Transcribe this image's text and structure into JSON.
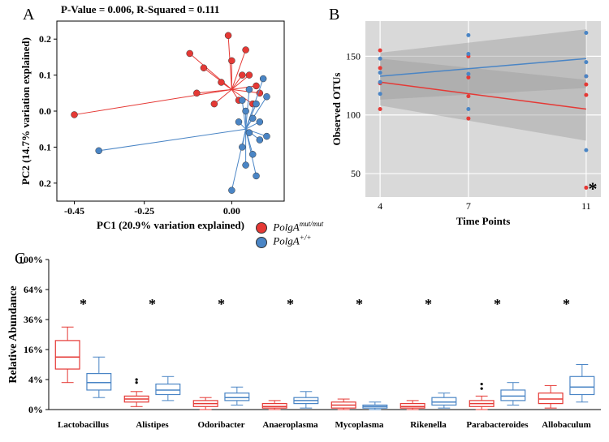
{
  "panelA": {
    "label": "A",
    "title": "P-Value = 0.006, R-Squared = 0.111",
    "xlabel": "PC1 (20.9% variation explained)",
    "ylabel": "PC2 (14.7% variation explained)",
    "xlim": [
      -0.5,
      0.15
    ],
    "ylim": [
      -0.25,
      0.25
    ],
    "xticks": [
      -0.45,
      -0.25,
      0.0
    ],
    "yticks_top": [
      0.0,
      0.1,
      0.2
    ],
    "yticks_bottom": [
      0.1,
      0.2
    ],
    "centroid_red": [
      0.0,
      0.06
    ],
    "centroid_blue": [
      0.04,
      -0.05
    ],
    "red_points": [
      [
        -0.45,
        -0.01
      ],
      [
        -0.12,
        0.16
      ],
      [
        -0.1,
        0.05
      ],
      [
        -0.08,
        0.12
      ],
      [
        -0.05,
        0.02
      ],
      [
        -0.03,
        0.08
      ],
      [
        -0.01,
        0.21
      ],
      [
        0.0,
        0.14
      ],
      [
        0.02,
        0.03
      ],
      [
        0.03,
        0.1
      ],
      [
        0.04,
        0.17
      ],
      [
        0.05,
        0.1
      ],
      [
        0.06,
        0.02
      ],
      [
        0.07,
        0.07
      ],
      [
        0.08,
        0.05
      ]
    ],
    "blue_points": [
      [
        -0.38,
        -0.11
      ],
      [
        0.0,
        -0.22
      ],
      [
        0.02,
        -0.03
      ],
      [
        0.03,
        0.03
      ],
      [
        0.03,
        -0.1
      ],
      [
        0.04,
        0.0
      ],
      [
        0.04,
        -0.15
      ],
      [
        0.05,
        0.06
      ],
      [
        0.05,
        -0.06
      ],
      [
        0.06,
        -0.12
      ],
      [
        0.06,
        -0.02
      ],
      [
        0.07,
        -0.18
      ],
      [
        0.07,
        0.02
      ],
      [
        0.08,
        -0.08
      ],
      [
        0.08,
        -0.03
      ],
      [
        0.09,
        0.09
      ],
      [
        0.1,
        -0.07
      ],
      [
        0.1,
        0.04
      ]
    ],
    "colors": {
      "red": "#e53935",
      "blue": "#4a85c5",
      "axis": "#000",
      "grid": "#fff"
    },
    "marker_size": 4,
    "line_width": 1
  },
  "panelB": {
    "label": "B",
    "xlabel": "Time Points",
    "ylabel": "Observed OTUs",
    "xlim": [
      3.5,
      11.5
    ],
    "ylim": [
      30,
      180
    ],
    "xticks": [
      4,
      7,
      11
    ],
    "yticks": [
      50,
      100,
      150
    ],
    "red_line": {
      "x1": 4,
      "y1": 128,
      "x2": 11,
      "y2": 105
    },
    "blue_line": {
      "x1": 4,
      "y1": 133,
      "x2": 11,
      "y2": 148
    },
    "red_ci": [
      [
        4,
        108
      ],
      [
        11,
        78
      ],
      [
        11,
        130
      ],
      [
        4,
        148
      ]
    ],
    "blue_ci": [
      [
        4,
        113
      ],
      [
        11,
        123
      ],
      [
        11,
        173
      ],
      [
        4,
        153
      ]
    ],
    "red_points": [
      [
        4,
        127
      ],
      [
        4,
        140
      ],
      [
        4,
        155
      ],
      [
        4,
        105
      ],
      [
        7,
        97
      ],
      [
        7,
        116
      ],
      [
        7,
        132
      ],
      [
        7,
        150
      ],
      [
        11,
        38
      ],
      [
        11,
        117
      ],
      [
        11,
        126
      ],
      [
        11,
        133
      ]
    ],
    "blue_points": [
      [
        4,
        128
      ],
      [
        4,
        148
      ],
      [
        4,
        136
      ],
      [
        4,
        118
      ],
      [
        7,
        105
      ],
      [
        7,
        135
      ],
      [
        7,
        152
      ],
      [
        7,
        168
      ],
      [
        11,
        70
      ],
      [
        11,
        133
      ],
      [
        11,
        145
      ],
      [
        11,
        170
      ]
    ],
    "star": "*",
    "colors": {
      "bg": "#d9d9d9",
      "grid": "#ffffff",
      "ci": "#9e9e9e",
      "red": "#e53935",
      "blue": "#4a85c5"
    },
    "marker_size": 2.5,
    "line_width": 1.5
  },
  "legend": {
    "red_label_base": "PolgA",
    "red_sup": "mut/mut",
    "blue_label_base": "PolgA",
    "blue_sup": "+/+",
    "red_color": "#e53935",
    "blue_color": "#4a85c5"
  },
  "panelC": {
    "label": "C",
    "ylabel": "Relative Abundance",
    "yticks": [
      "0%",
      "4%",
      "16%",
      "36%",
      "64%",
      "100%"
    ],
    "ytick_pos": [
      0,
      0.2,
      0.4,
      0.6,
      0.8,
      1.0
    ],
    "categories": [
      "Lactobacillus",
      "Alistipes",
      "Odoribacter",
      "Anaeroplasma",
      "Mycoplasma",
      "Rikenella",
      "Parabacteroides",
      "Allobaculum"
    ],
    "star": "*",
    "boxes": [
      {
        "red": {
          "q1": 0.27,
          "med": 0.35,
          "q3": 0.46,
          "lo": 0.18,
          "hi": 0.55
        },
        "blue": {
          "q1": 0.13,
          "med": 0.18,
          "q3": 0.24,
          "lo": 0.08,
          "hi": 0.35
        }
      },
      {
        "red": {
          "q1": 0.05,
          "med": 0.07,
          "q3": 0.09,
          "lo": 0.02,
          "hi": 0.12,
          "out": [
            0.18,
            0.2
          ]
        },
        "blue": {
          "q1": 0.1,
          "med": 0.13,
          "q3": 0.17,
          "lo": 0.06,
          "hi": 0.22
        }
      },
      {
        "red": {
          "q1": 0.02,
          "med": 0.04,
          "q3": 0.06,
          "lo": 0.0,
          "hi": 0.08
        },
        "blue": {
          "q1": 0.06,
          "med": 0.08,
          "q3": 0.11,
          "lo": 0.03,
          "hi": 0.15
        }
      },
      {
        "red": {
          "q1": 0.01,
          "med": 0.02,
          "q3": 0.04,
          "lo": 0.0,
          "hi": 0.06
        },
        "blue": {
          "q1": 0.04,
          "med": 0.06,
          "q3": 0.08,
          "lo": 0.01,
          "hi": 0.12
        }
      },
      {
        "red": {
          "q1": 0.01,
          "med": 0.03,
          "q3": 0.05,
          "lo": 0.0,
          "hi": 0.07
        },
        "blue": {
          "q1": 0.01,
          "med": 0.02,
          "q3": 0.03,
          "lo": 0.0,
          "hi": 0.05
        }
      },
      {
        "red": {
          "q1": 0.01,
          "med": 0.02,
          "q3": 0.04,
          "lo": 0.0,
          "hi": 0.06
        },
        "blue": {
          "q1": 0.03,
          "med": 0.05,
          "q3": 0.08,
          "lo": 0.01,
          "hi": 0.11
        }
      },
      {
        "red": {
          "q1": 0.02,
          "med": 0.04,
          "q3": 0.06,
          "lo": 0.0,
          "hi": 0.09,
          "out": [
            0.14,
            0.17
          ]
        },
        "blue": {
          "q1": 0.06,
          "med": 0.09,
          "q3": 0.13,
          "lo": 0.03,
          "hi": 0.18
        }
      },
      {
        "red": {
          "q1": 0.04,
          "med": 0.07,
          "q3": 0.11,
          "lo": 0.01,
          "hi": 0.16
        },
        "blue": {
          "q1": 0.1,
          "med": 0.15,
          "q3": 0.22,
          "lo": 0.05,
          "hi": 0.3
        }
      }
    ],
    "colors": {
      "red": "#e53935",
      "blue": "#4a85c5",
      "axis": "#000"
    },
    "box_width": 0.35,
    "line_width": 1
  }
}
